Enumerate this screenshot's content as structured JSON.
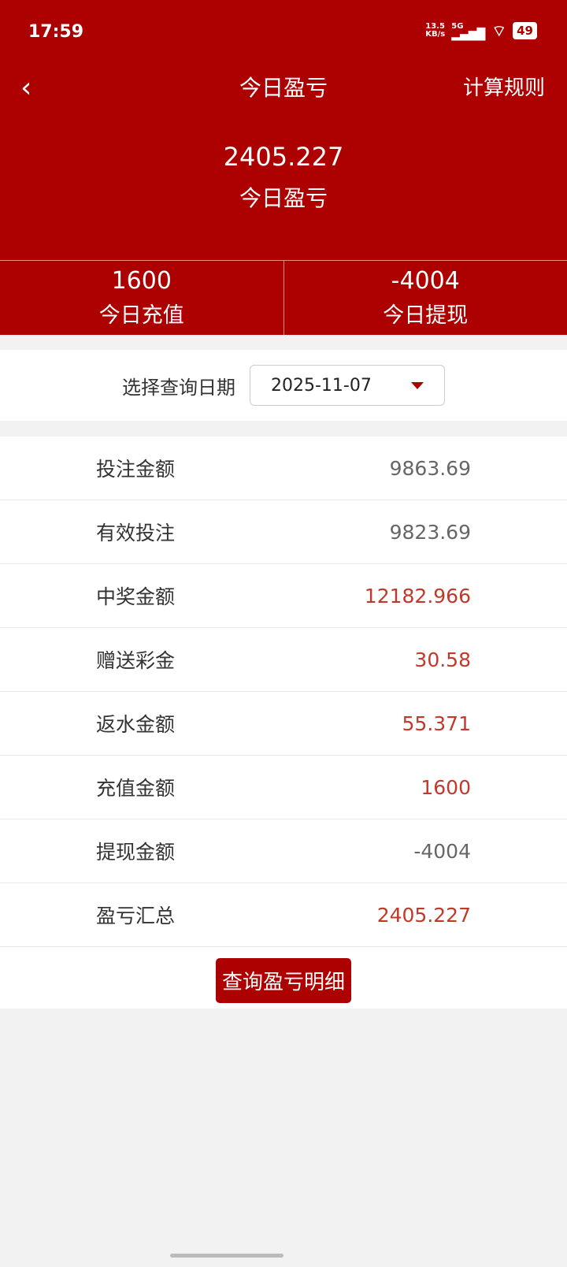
{
  "status": {
    "time": "17:59",
    "speed": "13.5",
    "speed_unit": "KB/s",
    "network": "5G",
    "battery": "49"
  },
  "nav": {
    "title": "今日盈亏",
    "rules": "计算规则"
  },
  "summary": {
    "value": "2405.227",
    "label": "今日盈亏"
  },
  "stats": [
    {
      "value": "1600",
      "label": "今日充值"
    },
    {
      "value": "-4004",
      "label": "今日提现"
    }
  ],
  "date": {
    "label": "选择查询日期",
    "value": "2025-11-07"
  },
  "rows": [
    {
      "label": "投注金额",
      "value": "9863.69",
      "highlight": false
    },
    {
      "label": "有效投注",
      "value": "9823.69",
      "highlight": false
    },
    {
      "label": "中奖金额",
      "value": "12182.966",
      "highlight": true
    },
    {
      "label": "赠送彩金",
      "value": "30.58",
      "highlight": true
    },
    {
      "label": "返水金额",
      "value": "55.371",
      "highlight": true
    },
    {
      "label": "充值金额",
      "value": "1600",
      "highlight": true
    },
    {
      "label": "提现金额",
      "value": "-4004",
      "highlight": false
    },
    {
      "label": "盈亏汇总",
      "value": "2405.227",
      "highlight": true
    }
  ],
  "button": "查询盈亏明细",
  "colors": {
    "primary": "#ad0000",
    "highlight": "#c0392b"
  }
}
